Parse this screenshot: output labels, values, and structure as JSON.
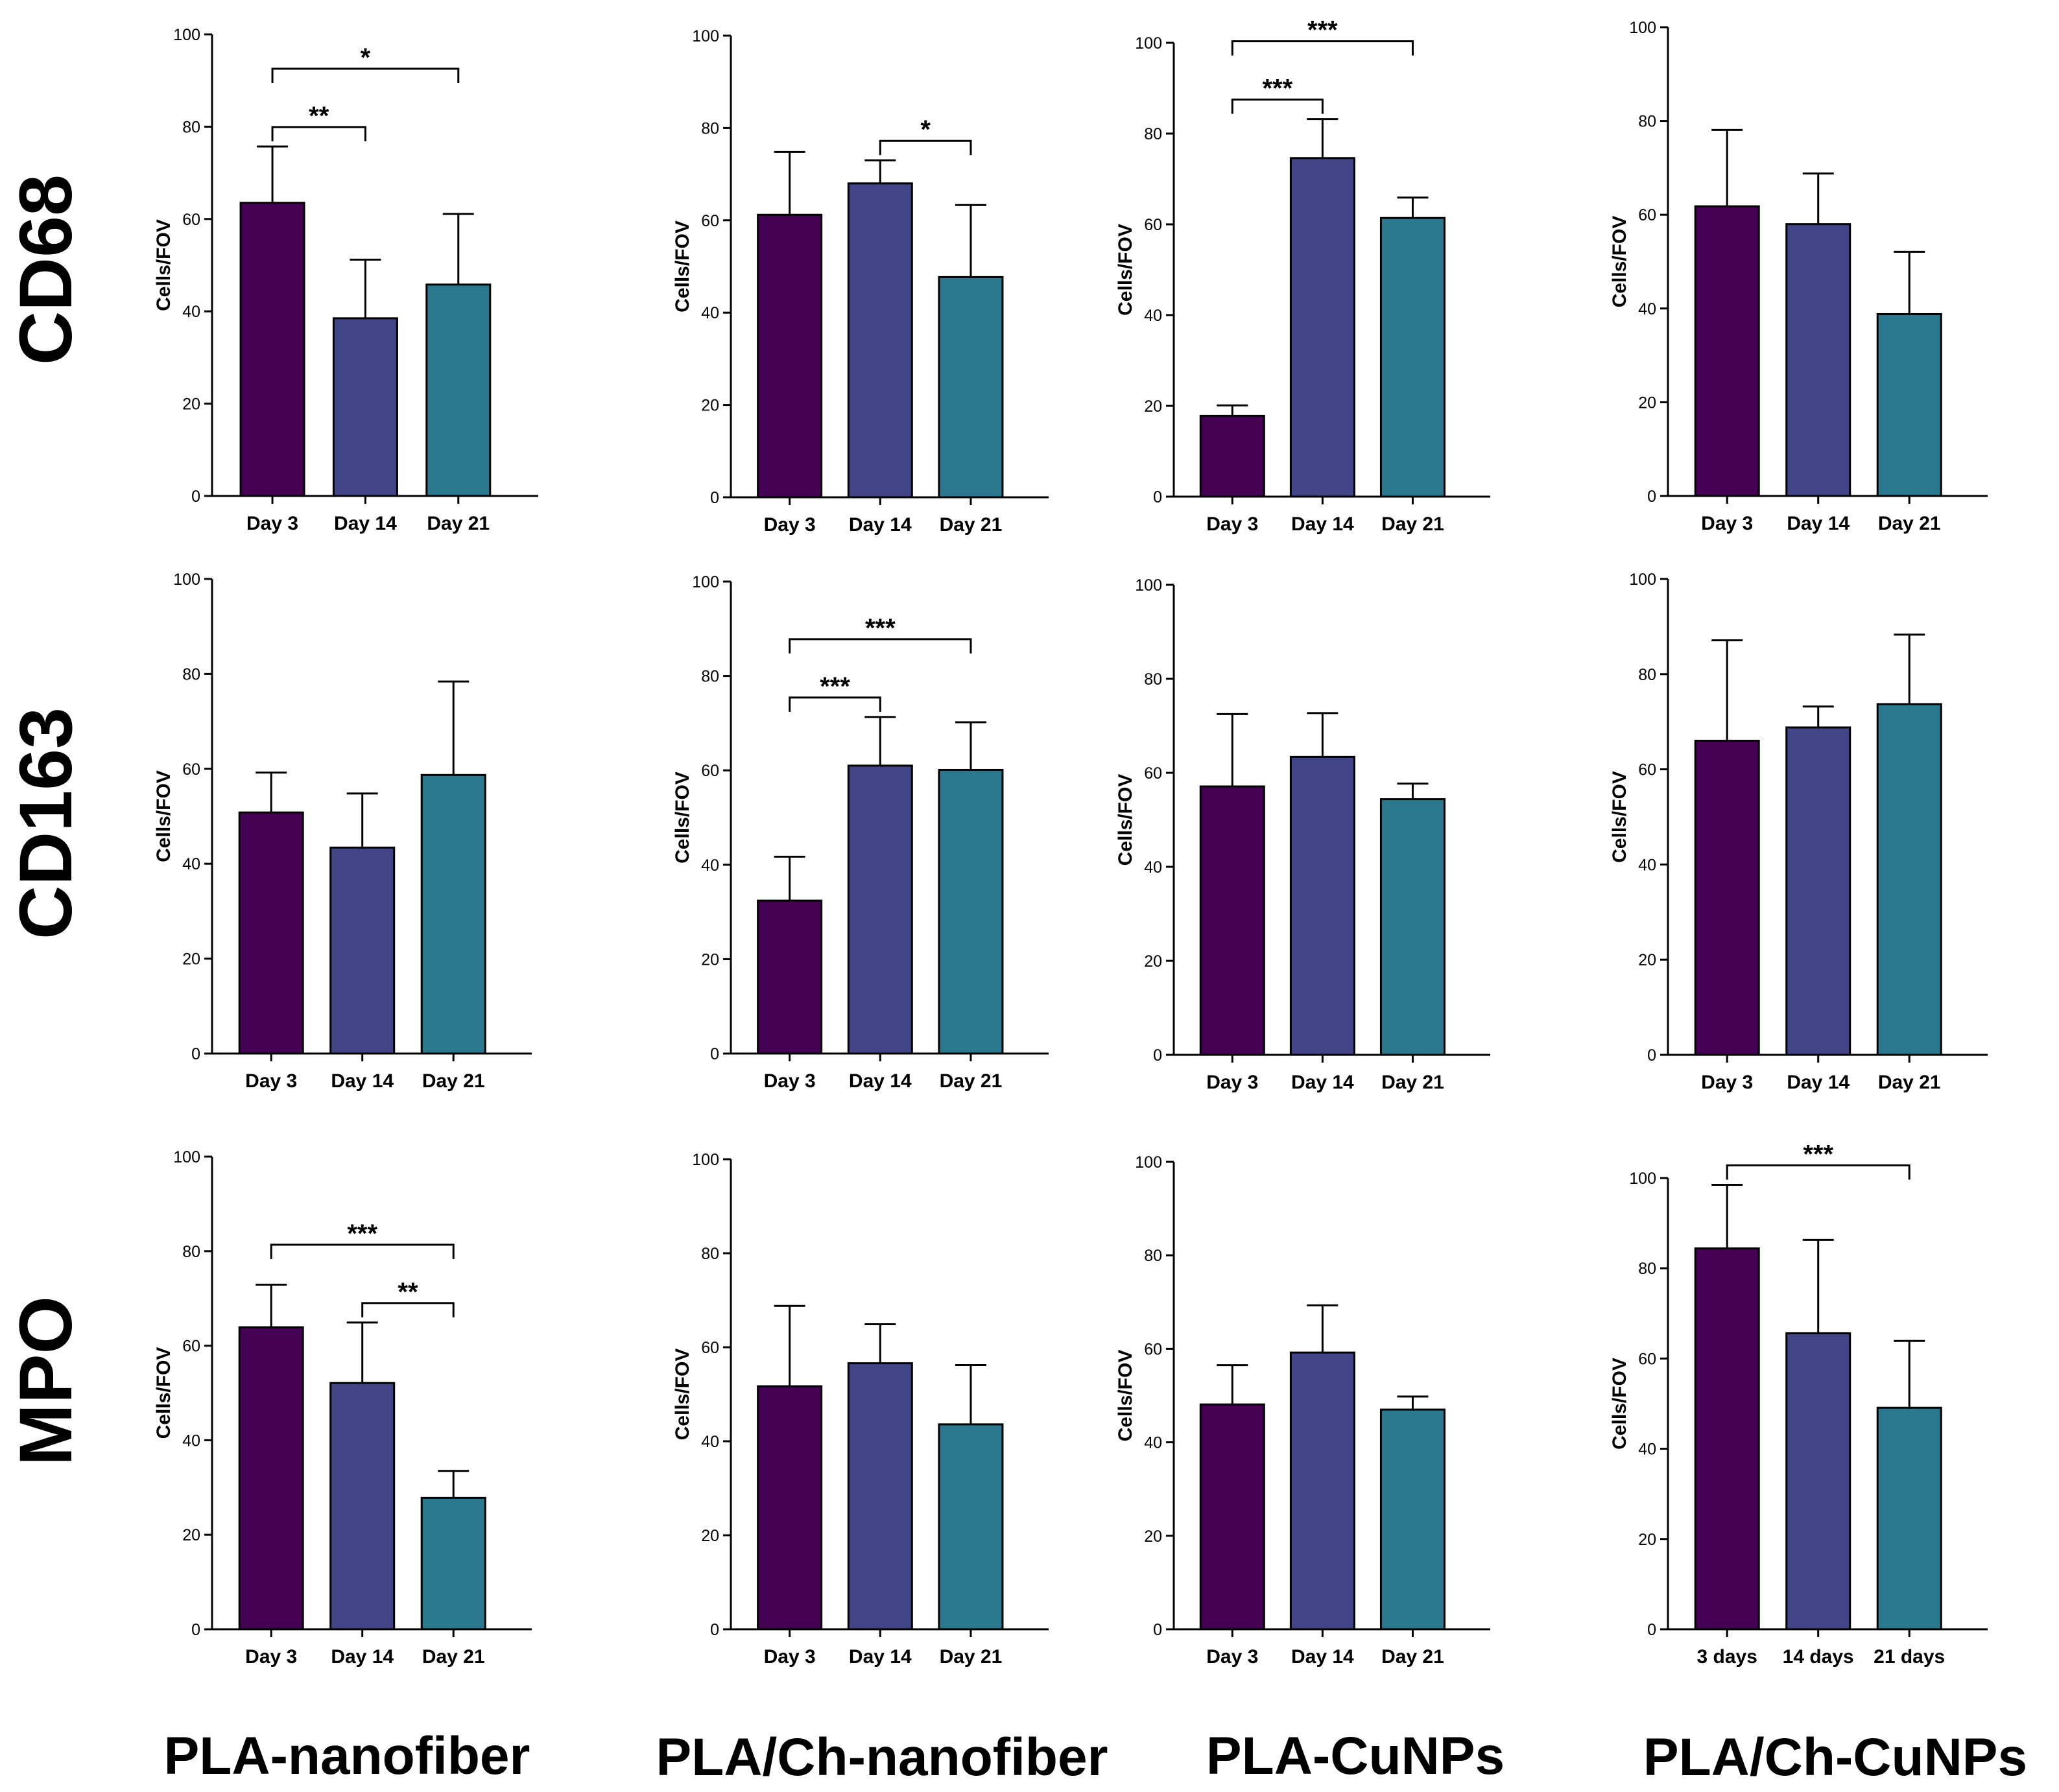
{
  "row_labels": [
    "CD68",
    "CD163",
    "MPO"
  ],
  "column_labels": [
    "PLA-nanofiber",
    "PLA/Ch-nanofiber",
    "PLA-CuNPs",
    "PLA/Ch-CuNPs"
  ],
  "colors": {
    "day3": "#440154",
    "day14": "#414487",
    "day21": "#2a788e",
    "axis": "#000000"
  },
  "chart_data": [
    {
      "id": "cd68-pla-nanofiber",
      "type": "bar",
      "marker": "CD68",
      "group": "PLA-nanofiber",
      "categories": [
        "Day 3",
        "Day 14",
        "Day 21"
      ],
      "values": [
        63.5,
        38.5,
        45.8
      ],
      "errors": [
        12.2,
        12.7,
        15.3
      ],
      "ylabel": "Cells/FOV",
      "ylim": [
        0,
        100
      ],
      "yticks": [
        0,
        20,
        40,
        60,
        80,
        100
      ],
      "significance": [
        {
          "from": 0,
          "to": 1,
          "label": "**"
        },
        {
          "from": 0,
          "to": 2,
          "label": "*"
        }
      ]
    },
    {
      "id": "cd68-pla-ch-nanofiber",
      "type": "bar",
      "marker": "CD68",
      "group": "PLA/Ch-nanofiber",
      "categories": [
        "Day 3",
        "Day 14",
        "Day 21"
      ],
      "values": [
        61.2,
        68,
        47.7
      ],
      "errors": [
        13.6,
        5,
        15.6
      ],
      "ylabel": "Cells/FOV",
      "ylim": [
        0,
        100
      ],
      "yticks": [
        0,
        20,
        40,
        60,
        80,
        100
      ],
      "significance": [
        {
          "from": 1,
          "to": 2,
          "label": "*"
        }
      ]
    },
    {
      "id": "cd68-pla-cunps",
      "type": "bar",
      "marker": "CD68",
      "group": "PLA-CuNPs",
      "categories": [
        "Day 3",
        "Day 14",
        "Day 21"
      ],
      "values": [
        17.8,
        74.6,
        61.4
      ],
      "errors": [
        2.3,
        8.6,
        4.5
      ],
      "ylabel": "Cells/FOV",
      "ylim": [
        0,
        100
      ],
      "yticks": [
        0,
        20,
        40,
        60,
        80,
        100
      ],
      "significance": [
        {
          "from": 0,
          "to": 1,
          "label": "***"
        },
        {
          "from": 0,
          "to": 2,
          "label": "***"
        }
      ]
    },
    {
      "id": "cd68-pla-ch-cunps",
      "type": "bar",
      "marker": "CD68",
      "group": "PLA/Ch-CuNPs",
      "categories": [
        "Day 3",
        "Day 14",
        "Day 21"
      ],
      "values": [
        61.8,
        58,
        38.8
      ],
      "errors": [
        16.3,
        10.8,
        13.3
      ],
      "ylabel": "Cells/FOV",
      "ylim": [
        0,
        100
      ],
      "yticks": [
        0,
        20,
        40,
        60,
        80,
        100
      ],
      "significance": []
    },
    {
      "id": "cd163-pla-nanofiber",
      "type": "bar",
      "marker": "CD163",
      "group": "PLA-nanofiber",
      "categories": [
        "Day 3",
        "Day 14",
        "Day 21"
      ],
      "values": [
        50.8,
        43.4,
        58.7
      ],
      "errors": [
        8.4,
        11.4,
        19.7
      ],
      "ylabel": "Cells/FOV",
      "ylim": [
        0,
        100
      ],
      "yticks": [
        0,
        20,
        40,
        60,
        80,
        100
      ],
      "significance": []
    },
    {
      "id": "cd163-pla-ch-nanofiber",
      "type": "bar",
      "marker": "CD163",
      "group": "PLA/Ch-nanofiber",
      "categories": [
        "Day 3",
        "Day 14",
        "Day 21"
      ],
      "values": [
        32.4,
        61,
        60.1
      ],
      "errors": [
        9.3,
        10.3,
        10.1
      ],
      "ylabel": "Cells/FOV",
      "ylim": [
        0,
        100
      ],
      "yticks": [
        0,
        20,
        40,
        60,
        80,
        100
      ],
      "significance": [
        {
          "from": 0,
          "to": 1,
          "label": "***"
        },
        {
          "from": 0,
          "to": 2,
          "label": "***"
        }
      ]
    },
    {
      "id": "cd163-pla-cunps",
      "type": "bar",
      "marker": "CD163",
      "group": "PLA-CuNPs",
      "categories": [
        "Day 3",
        "Day 14",
        "Day 21"
      ],
      "values": [
        57.1,
        63.4,
        54.4
      ],
      "errors": [
        15.4,
        9.3,
        3.3
      ],
      "ylabel": "Cells/FOV",
      "ylim": [
        0,
        100
      ],
      "yticks": [
        0,
        20,
        40,
        60,
        80,
        100
      ],
      "significance": []
    },
    {
      "id": "cd163-pla-ch-cunps",
      "type": "bar",
      "marker": "CD163",
      "group": "PLA/Ch-CuNPs",
      "categories": [
        "Day 3",
        "Day 14",
        "Day 21"
      ],
      "values": [
        66,
        68.8,
        73.7
      ],
      "errors": [
        21.1,
        4.4,
        14.6
      ],
      "ylabel": "Cells/FOV",
      "ylim": [
        0,
        100
      ],
      "yticks": [
        0,
        20,
        40,
        60,
        80,
        100
      ],
      "significance": []
    },
    {
      "id": "mpo-pla-nanofiber",
      "type": "bar",
      "marker": "MPO",
      "group": "PLA-nanofiber",
      "categories": [
        "Day 3",
        "Day 14",
        "Day 21"
      ],
      "values": [
        63.9,
        52.1,
        27.8
      ],
      "errors": [
        9,
        12.8,
        5.7
      ],
      "ylabel": "Cells/FOV",
      "ylim": [
        0,
        100
      ],
      "yticks": [
        0,
        20,
        40,
        60,
        80,
        100
      ],
      "significance": [
        {
          "from": 1,
          "to": 2,
          "label": "**"
        },
        {
          "from": 0,
          "to": 2,
          "label": "***"
        }
      ]
    },
    {
      "id": "mpo-pla-ch-nanofiber",
      "type": "bar",
      "marker": "MPO",
      "group": "PLA/Ch-nanofiber",
      "categories": [
        "Day 3",
        "Day 14",
        "Day 21"
      ],
      "values": [
        51.7,
        56.6,
        43.6
      ],
      "errors": [
        17.1,
        8.3,
        12.6
      ],
      "ylabel": "Cells/FOV",
      "ylim": [
        0,
        100
      ],
      "yticks": [
        0,
        20,
        40,
        60,
        80,
        100
      ],
      "significance": []
    },
    {
      "id": "mpo-pla-cunps",
      "type": "bar",
      "marker": "MPO",
      "group": "PLA-CuNPs",
      "categories": [
        "Day 3",
        "Day 14",
        "Day 21"
      ],
      "values": [
        48.1,
        59.2,
        47
      ],
      "errors": [
        8.4,
        10.1,
        2.8
      ],
      "ylabel": "Cells/FOV",
      "ylim": [
        0,
        100
      ],
      "yticks": [
        0,
        20,
        40,
        60,
        80,
        100
      ],
      "significance": []
    },
    {
      "id": "mpo-pla-ch-cunps",
      "type": "bar",
      "marker": "MPO",
      "group": "PLA/Ch-CuNPs",
      "categories": [
        "3 days",
        "14 days",
        "21 days"
      ],
      "values": [
        84.4,
        65.6,
        49.1
      ],
      "errors": [
        14.1,
        20.7,
        14.8
      ],
      "ylabel": "Cells/FOV",
      "ylim": [
        0,
        100
      ],
      "yticks": [
        0,
        20,
        40,
        60,
        80,
        100
      ],
      "significance": [
        {
          "from": 0,
          "to": 2,
          "label": "***"
        }
      ]
    }
  ]
}
